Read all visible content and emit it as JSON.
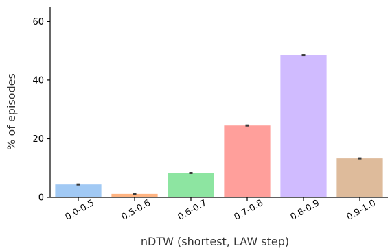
{
  "chart_data": {
    "type": "bar",
    "title": "",
    "xlabel": "nDTW (shortest, LAW step)",
    "ylabel": "% of episodes",
    "categories": [
      "0.0-0.5",
      "0.5-0.6",
      "0.6-0.7",
      "0.7-0.8",
      "0.8-0.9",
      "0.9-1.0"
    ],
    "values": [
      4.4,
      1.2,
      8.3,
      24.5,
      48.5,
      13.3
    ],
    "error": [
      0.3,
      0.2,
      0.3,
      0.3,
      0.3,
      0.3
    ],
    "colors": [
      "#a1c9f4",
      "#ffb482",
      "#8de5a1",
      "#ff9f9b",
      "#d0bbff",
      "#debb9b"
    ],
    "ylim": [
      0,
      65
    ],
    "yticks": [
      0,
      20,
      40,
      60
    ],
    "grid": false,
    "legend": "none"
  }
}
